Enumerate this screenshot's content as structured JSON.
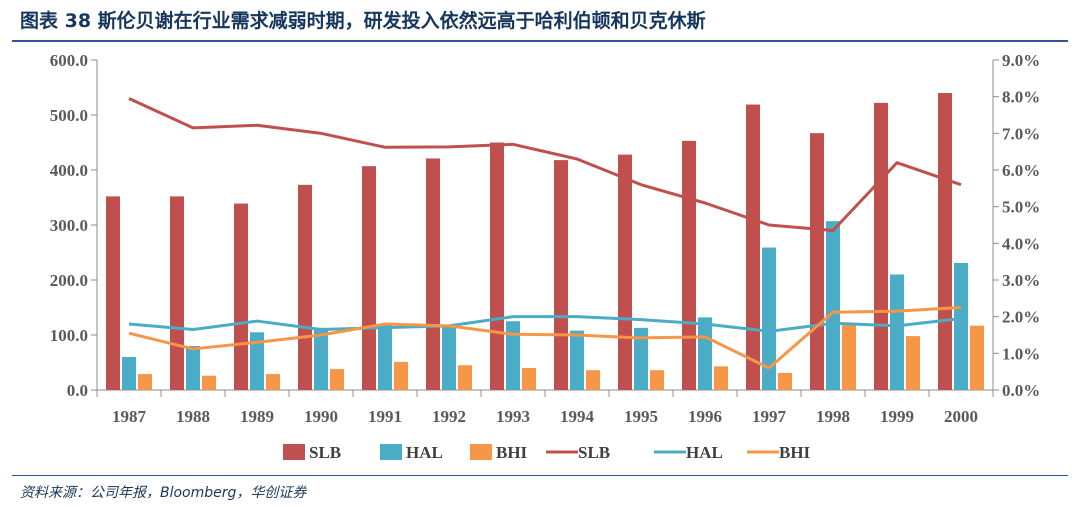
{
  "header": {
    "title": "图表 38 斯伦贝谢在行业需求减弱时期，研发投入依然远高于哈利伯顿和贝克休斯"
  },
  "footer": {
    "source": "资料来源：公司年报，Bloomberg，华创证券"
  },
  "chart_data": {
    "type": "bar",
    "categories": [
      "1987",
      "1988",
      "1989",
      "1990",
      "1991",
      "1992",
      "1993",
      "1994",
      "1995",
      "1996",
      "1997",
      "1998",
      "1999",
      "2000"
    ],
    "y_left": {
      "ylim": [
        0,
        600
      ],
      "ticks": [
        "0.0",
        "100.0",
        "200.0",
        "300.0",
        "400.0",
        "500.0",
        "600.0"
      ]
    },
    "y_right": {
      "ylim": [
        0,
        9
      ],
      "ticks": [
        "0.0%",
        "1.0%",
        "2.0%",
        "3.0%",
        "4.0%",
        "5.0%",
        "6.0%",
        "7.0%",
        "8.0%",
        "9.0%"
      ]
    },
    "bar_series": [
      {
        "name": "SLB",
        "color": "#c0504d",
        "values": [
          352,
          352,
          339,
          373,
          407,
          421,
          450,
          418,
          428,
          453,
          519,
          467,
          522,
          540
        ]
      },
      {
        "name": "HAL",
        "color": "#4bacc6",
        "values": [
          60,
          80,
          105,
          113,
          119,
          118,
          125,
          108,
          113,
          132,
          259,
          307,
          210,
          231
        ]
      },
      {
        "name": "BHI",
        "color": "#f79646",
        "values": [
          29,
          26,
          29,
          38,
          51,
          45,
          40,
          36,
          36,
          43,
          31,
          118,
          98,
          117
        ]
      }
    ],
    "line_series": [
      {
        "name": "SLB",
        "color": "#c0504d",
        "values": [
          7.95,
          7.15,
          7.22,
          7.0,
          6.62,
          6.63,
          6.7,
          6.3,
          5.6,
          5.1,
          4.5,
          4.35,
          6.2,
          5.6
        ]
      },
      {
        "name": "HAL",
        "color": "#4bacc6",
        "values": [
          1.8,
          1.65,
          1.88,
          1.65,
          1.7,
          1.75,
          2.0,
          2.0,
          1.92,
          1.8,
          1.6,
          1.82,
          1.75,
          1.95
        ]
      },
      {
        "name": "BHI",
        "color": "#f79646",
        "values": [
          1.55,
          1.12,
          1.3,
          1.5,
          1.8,
          1.75,
          1.52,
          1.5,
          1.42,
          1.45,
          0.6,
          2.12,
          2.15,
          2.25
        ]
      }
    ],
    "legend": {
      "placement": "bottom",
      "entries": [
        {
          "label": "SLB",
          "kind": "bar",
          "color": "#c0504d"
        },
        {
          "label": "HAL",
          "kind": "bar",
          "color": "#4bacc6"
        },
        {
          "label": "BHI",
          "kind": "bar",
          "color": "#f79646"
        },
        {
          "label": "SLB",
          "kind": "line",
          "color": "#c0504d"
        },
        {
          "label": "HAL",
          "kind": "line",
          "color": "#4bacc6"
        },
        {
          "label": "BHI",
          "kind": "line",
          "color": "#f79646"
        }
      ]
    },
    "grid": false
  }
}
